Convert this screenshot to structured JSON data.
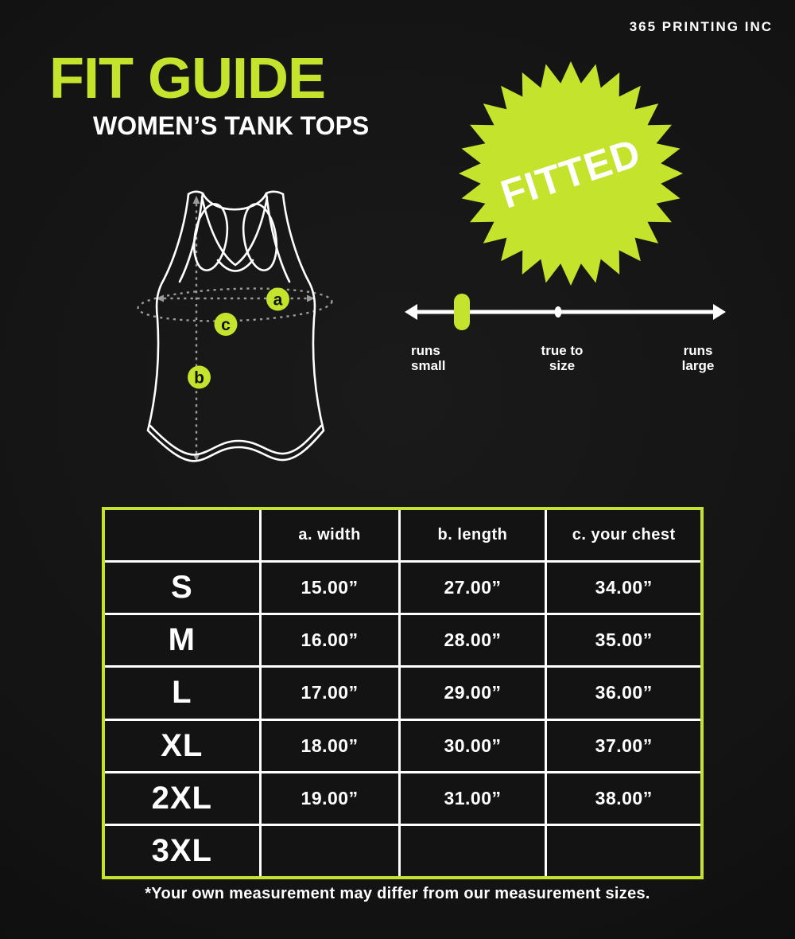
{
  "colors": {
    "background": "#131313",
    "accent": "#c3e32c",
    "text": "#ffffff",
    "dash_gray": "#9a9a9a",
    "point_letter": "#111111"
  },
  "header": {
    "brand": "365 PRINTING INC",
    "title": "FIT GUIDE",
    "subtitle": "WOMEN’S TANK TOPS"
  },
  "badge": {
    "label": "FITTED"
  },
  "diagram": {
    "points": [
      {
        "id": "a"
      },
      {
        "id": "b"
      },
      {
        "id": "c"
      }
    ]
  },
  "fit_scale": {
    "marker_position": "runs-small",
    "labels": {
      "left": "runs\nsmall",
      "center": "true to\nsize",
      "right": "runs\nlarge"
    }
  },
  "size_table": {
    "headers": [
      "",
      "a. width",
      "b. length",
      "c. your chest"
    ],
    "rows": [
      {
        "size": "S",
        "width": "15.00”",
        "length": "27.00”",
        "chest": "34.00”"
      },
      {
        "size": "M",
        "width": "16.00”",
        "length": "28.00”",
        "chest": "35.00”"
      },
      {
        "size": "L",
        "width": "17.00”",
        "length": "29.00”",
        "chest": "36.00”"
      },
      {
        "size": "XL",
        "width": "18.00”",
        "length": "30.00”",
        "chest": "37.00”"
      },
      {
        "size": "2XL",
        "width": "19.00”",
        "length": "31.00”",
        "chest": "38.00”"
      },
      {
        "size": "3XL",
        "width": "",
        "length": "",
        "chest": ""
      }
    ]
  },
  "footnote": "*Your own measurement may differ from our measurement sizes."
}
